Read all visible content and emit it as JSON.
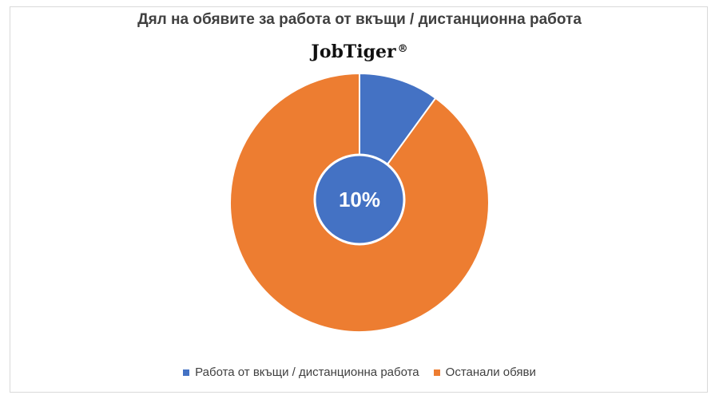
{
  "chart_data": {
    "type": "pie",
    "title": "Дял на обявите за работа от вкъщи / дистанционна работа",
    "brand": "JobTiger",
    "brand_mark": "®",
    "center_label": "10%",
    "slices": [
      {
        "name": "Работа от вкъщи / дистанционна работа",
        "value": 10,
        "color": "#4472C4"
      },
      {
        "name": "Останали обяви",
        "value": 90,
        "color": "#ED7D31"
      }
    ],
    "legend_position": "bottom"
  }
}
